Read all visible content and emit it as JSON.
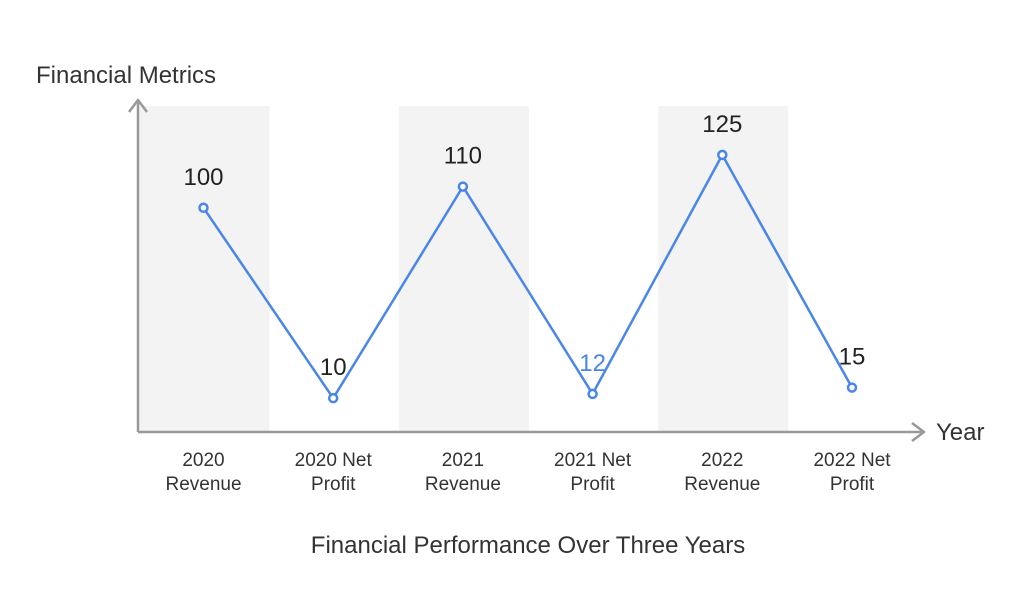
{
  "chart_data": {
    "type": "line",
    "title": "Financial Performance Over Three Years",
    "ylabel": "Financial Metrics",
    "xlabel": "Year",
    "categories": [
      [
        "2020",
        "Revenue"
      ],
      [
        "2020 Net",
        "Profit"
      ],
      [
        "2021",
        "Revenue"
      ],
      [
        "2021 Net",
        "Profit"
      ],
      [
        "2022",
        "Revenue"
      ],
      [
        "2022 Net",
        "Profit"
      ]
    ],
    "values": [
      100,
      10,
      110,
      12,
      125,
      15
    ],
    "data_labels": [
      "100",
      "10",
      "110",
      "12",
      "125",
      "15"
    ],
    "ylim": [
      -6,
      150
    ],
    "grid": false,
    "shaded_categories": [
      0,
      2,
      4
    ],
    "colors": {
      "line": "#4a86e8",
      "label": "#222222",
      "highlight_label": "#4a86e8",
      "band": "#f3f3f3",
      "axis": "#999999",
      "text": "#333333"
    },
    "highlight_index": 3
  }
}
